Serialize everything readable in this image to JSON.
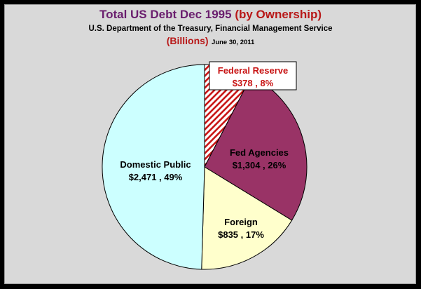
{
  "title": {
    "part1": "Total US Debt Dec 1995 ",
    "part2": "(by Ownership)",
    "subtitle": "U.S. Department of the Treasury, Financial Management Service",
    "units": "(Billions)",
    "date": "June 30, 2011"
  },
  "colors": {
    "background": "#000000",
    "panel": "#d9d9d9",
    "title_purple": "#6a1e6e",
    "title_red": "#b81818"
  },
  "chart_data": {
    "type": "pie",
    "title": "Total US Debt Dec 1995 (by Ownership)",
    "units": "Billions",
    "slices": [
      {
        "name": "Federal Reserve",
        "value": 378,
        "percent": 8,
        "label_value": "$378 , 8%",
        "color": "#c81414",
        "pattern": "diagonal-hatch",
        "label_boxed": true
      },
      {
        "name": "Fed Agencies",
        "value": 1304,
        "percent": 26,
        "label_value": "$1,304 , 26%",
        "color": "#993366"
      },
      {
        "name": "Foreign",
        "value": 835,
        "percent": 17,
        "label_value": "$835 , 17%",
        "color": "#ffffcc"
      },
      {
        "name": "Domestic Public",
        "value": 2471,
        "percent": 49,
        "label_value": "$2,471 , 49%",
        "color": "#ccffff"
      }
    ]
  }
}
